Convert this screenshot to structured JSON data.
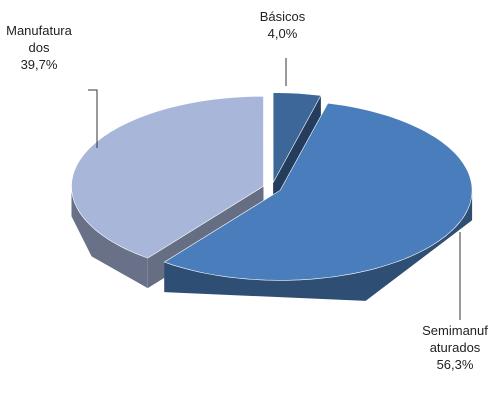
{
  "chart_data": {
    "type": "pie",
    "categories": [
      "Básicos",
      "Semimanufaturados",
      "Manufaturados"
    ],
    "values": [
      4.0,
      56.3,
      39.7
    ],
    "value_labels": [
      "4,0%",
      "56,3%",
      "39,7%"
    ],
    "colors": [
      "#3d6699",
      "#4a7dbb",
      "#a8b7d9"
    ]
  }
}
